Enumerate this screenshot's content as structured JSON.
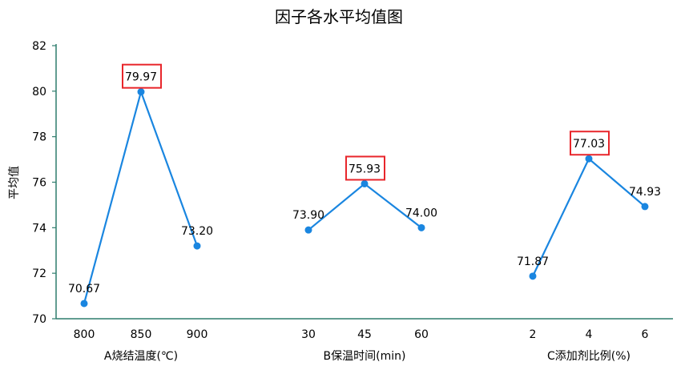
{
  "chart_data": {
    "type": "line",
    "title": "因子各水平均值图",
    "ylabel": "平均值",
    "ylim": [
      70,
      82
    ],
    "yticks": [
      70,
      72,
      74,
      76,
      78,
      80,
      82
    ],
    "grid": false,
    "groups": [
      {
        "name": "A烧结温度(℃)",
        "categories": [
          "800",
          "850",
          "900"
        ],
        "values": [
          70.67,
          79.97,
          73.2
        ],
        "labels": [
          "70.67",
          "79.97",
          "73.20"
        ],
        "highlight_index": 1
      },
      {
        "name": "B保温时间(min)",
        "categories": [
          "30",
          "45",
          "60"
        ],
        "values": [
          73.9,
          75.93,
          74.0
        ],
        "labels": [
          "73.90",
          "75.93",
          "74.00"
        ],
        "highlight_index": 1
      },
      {
        "name": "C添加剂比例(%)",
        "categories": [
          "2",
          "4",
          "6"
        ],
        "values": [
          71.87,
          77.03,
          74.93
        ],
        "labels": [
          "71.87",
          "77.03",
          "74.93"
        ],
        "highlight_index": 1
      }
    ],
    "colors": {
      "line": "#1a86e0",
      "marker": "#1a86e0",
      "axis": "#2f7d6d",
      "highlight_box": "#e8262b"
    }
  }
}
